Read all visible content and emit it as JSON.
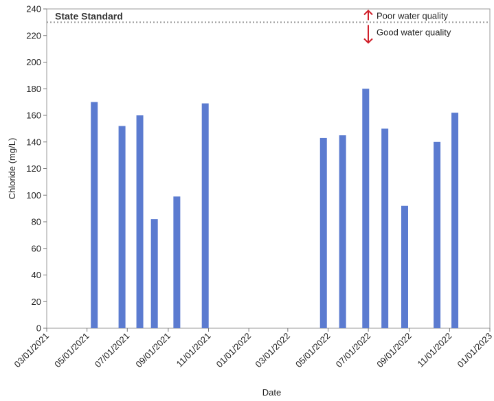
{
  "chart_data": {
    "type": "bar",
    "xlabel": "Date",
    "ylabel": "Chloride (mg/L)",
    "ylim": [
      0,
      240
    ],
    "yticks": [
      0,
      20,
      40,
      60,
      80,
      100,
      120,
      140,
      160,
      180,
      200,
      220,
      240
    ],
    "xlim": [
      "2021-03-01",
      "2023-01-01"
    ],
    "xtick_labels": [
      "03/01/2021",
      "05/01/2021",
      "07/01/2021",
      "09/01/2021",
      "11/01/2021",
      "01/01/2022",
      "03/01/2022",
      "05/01/2022",
      "07/01/2022",
      "09/01/2022",
      "11/01/2022",
      "01/01/2023"
    ],
    "grid": false,
    "bar_color": "#5b7bd0",
    "series": [
      {
        "x": [
          "2021-05-12",
          "2021-06-23",
          "2021-07-20",
          "2021-08-11",
          "2021-09-14",
          "2021-10-27",
          "2022-04-24",
          "2022-05-23",
          "2022-06-27",
          "2022-07-26",
          "2022-08-25",
          "2022-10-13",
          "2022-11-09"
        ],
        "values": [
          170,
          152,
          160,
          82,
          99,
          169,
          143,
          145,
          180,
          150,
          92,
          140,
          162
        ]
      }
    ],
    "reference_line": {
      "label": "State Standard",
      "value": 230,
      "color": "#999999",
      "style": "dotted"
    },
    "annotations": {
      "above": "Poor water quality",
      "below": "Good water quality",
      "arrow_color": "#d0202a"
    }
  }
}
